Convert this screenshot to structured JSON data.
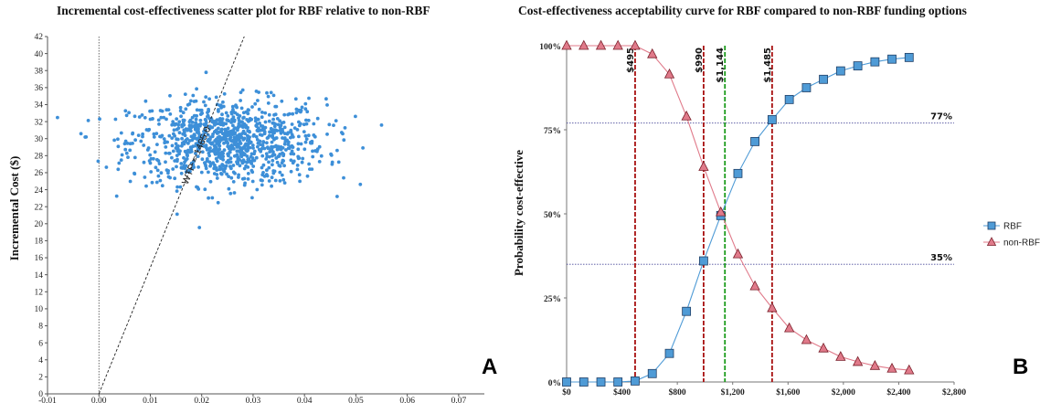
{
  "chart_data": [
    {
      "type": "scatter",
      "title": "Incremental cost-effectiveness scatter plot for RBF relative to non-RBF",
      "xlabel": "",
      "ylabel": "Incremental Cost ($)",
      "xlim": [
        -0.01,
        0.075
      ],
      "ylim": [
        0,
        42
      ],
      "x_ticks": [
        "-0.01",
        "0.00",
        "0.01",
        "0.02",
        "0.03",
        "0.04",
        "0.05",
        "0.06",
        "0.07"
      ],
      "y_ticks": [
        "0",
        "2",
        "4",
        "6",
        "8",
        "10",
        "12",
        "14",
        "16",
        "18",
        "20",
        "22",
        "24",
        "26",
        "28",
        "30",
        "32",
        "34",
        "36",
        "38",
        "40",
        "42"
      ],
      "wtp_line": {
        "label": "WTP = 1485.0",
        "slope": 1485.0
      },
      "cloud": {
        "x_center": 0.025,
        "x_sd": 0.0095,
        "y_center": 29.6,
        "y_sd": 2.5,
        "n_points": 1000
      },
      "color": "#3d8fd8",
      "panel_label": "A"
    },
    {
      "type": "line",
      "title": "Cost-effectiveness acceptability curve for RBF compared to non-RBF funding options",
      "xlabel": "",
      "ylabel": "Probability cost-effective",
      "xlim": [
        0,
        2800
      ],
      "ylim": [
        0,
        1
      ],
      "x_ticks": [
        "$0",
        "$400",
        "$800",
        "$1,200",
        "$1,600",
        "$2,000",
        "$2,400",
        "$2,800"
      ],
      "y_ticks": [
        "0%",
        "25%",
        "50%",
        "75%",
        "100%"
      ],
      "x": [
        0,
        124,
        248,
        371,
        495,
        619,
        743,
        866,
        990,
        1114,
        1238,
        1361,
        1485,
        1609,
        1733,
        1856,
        1980,
        2104,
        2228,
        2351,
        2475
      ],
      "series": [
        {
          "name": "RBF",
          "color": "#4f9bd6",
          "marker": "square",
          "values": [
            0.0,
            0.0,
            0.0,
            0.0,
            0.003,
            0.025,
            0.085,
            0.21,
            0.36,
            0.495,
            0.62,
            0.715,
            0.78,
            0.84,
            0.875,
            0.9,
            0.925,
            0.94,
            0.952,
            0.96,
            0.965
          ]
        },
        {
          "name": "non-RBF",
          "color": "#e07a8a",
          "marker": "triangle",
          "values": [
            1.0,
            1.0,
            1.0,
            1.0,
            1.0,
            0.975,
            0.915,
            0.79,
            0.64,
            0.505,
            0.38,
            0.285,
            0.22,
            0.16,
            0.125,
            0.1,
            0.075,
            0.06,
            0.048,
            0.04,
            0.035
          ]
        }
      ],
      "vertical_lines": [
        {
          "x": 495,
          "label": "$495",
          "color": "#a81010"
        },
        {
          "x": 990,
          "label": "$990",
          "color": "#a81010"
        },
        {
          "x": 1144,
          "label": "$1,144",
          "color": "#1a9a1a"
        },
        {
          "x": 1485,
          "label": "$1,485",
          "color": "#a81010"
        }
      ],
      "horizontal_lines": [
        {
          "y": 0.77,
          "label": "77%"
        },
        {
          "y": 0.35,
          "label": "35%"
        }
      ],
      "legend": "right",
      "panel_label": "B"
    }
  ]
}
